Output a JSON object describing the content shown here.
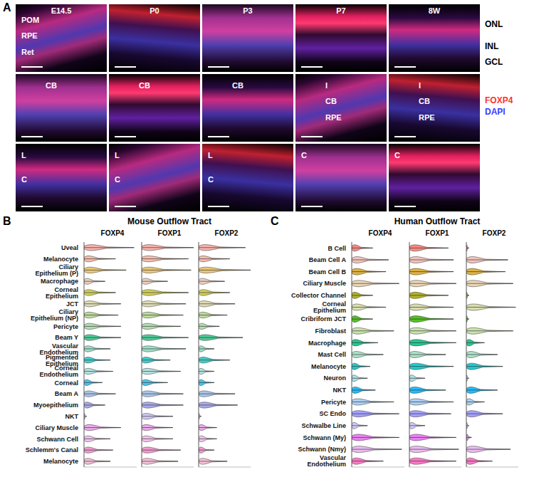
{
  "panel_labels": [
    "A",
    "B",
    "C"
  ],
  "panel_a": {
    "type": "image_grid",
    "columns": [
      "E14.5",
      "P0",
      "P3",
      "P7",
      "8W"
    ],
    "rows": [
      [
        [
          "POM",
          "RPE",
          "Ret"
        ],
        [],
        [],
        [],
        []
      ],
      [
        [
          "CB"
        ],
        [
          "CB"
        ],
        [
          "CB"
        ],
        [
          "I",
          "CB",
          "RPE"
        ],
        [
          "I",
          "CB",
          "RPE"
        ]
      ],
      [
        [
          "L",
          "C"
        ],
        [
          "L",
          "C"
        ],
        [
          "L",
          "C"
        ],
        [
          "C"
        ],
        [
          "C"
        ]
      ]
    ],
    "layer_labels": [
      "ONL",
      "INL",
      "GCL"
    ],
    "stains": [
      {
        "name": "FOXP4",
        "color": "#ff3030"
      },
      {
        "name": "DAPI",
        "color": "#3a3aff"
      }
    ]
  },
  "chart_data": [
    {
      "type": "violin",
      "title": "Mouse Outflow Tract",
      "orientation": "horizontal",
      "tick_labels": "y",
      "xlim": [
        0,
        1
      ],
      "categories": [
        "Uveal",
        "Melanocyte",
        "Ciliary Epithelium (P)",
        "Macrophage",
        "Corneal Epithelium",
        "JCT",
        "Ciliary Epithelium (NP)",
        "Pericyte",
        "Beam Y",
        "Vascular Endothelium",
        "Pigmented Epithelium",
        "Corneal Endothelium",
        "Corneal",
        "Beam A",
        "Myoepithelium",
        "NKT",
        "Ciliary Muscle",
        "Schwann Cell",
        "Schlemm's Canal",
        "Melanocyte"
      ],
      "colors": [
        "#f8a59e",
        "#f6b1a0",
        "#e8bd60",
        "#e9c9b5",
        "#c8c83c",
        "#d9d6a8",
        "#b4d68c",
        "#a8d6a4",
        "#2fc285",
        "#8fd8c0",
        "#22c5c0",
        "#a8dedc",
        "#2eb8e8",
        "#9bbde8",
        "#9b9ce8",
        "#c8c0f0",
        "#e99be8",
        "#f0b8ec",
        "#f08ac8",
        "#f5b7d0"
      ],
      "series": [
        {
          "name": "FOXP4",
          "values": [
            0.95,
            0.6,
            0.8,
            0.4,
            0.6,
            0.7,
            0.65,
            0.7,
            0.7,
            0.5,
            0.5,
            0.55,
            0.35,
            0.6,
            0.4,
            0.05,
            0.7,
            0.5,
            0.55,
            0.5
          ]
        },
        {
          "name": "FOXP1",
          "values": [
            1.0,
            0.9,
            0.95,
            0.5,
            0.9,
            0.85,
            0.8,
            0.75,
            0.9,
            0.85,
            0.55,
            0.75,
            0.5,
            0.8,
            0.8,
            0.6,
            0.6,
            0.6,
            0.75,
            0.7
          ]
        },
        {
          "name": "FOXP2",
          "values": [
            0.9,
            0.6,
            1.0,
            0.5,
            0.6,
            0.7,
            0.55,
            0.4,
            0.85,
            0.3,
            0.6,
            0.3,
            0.3,
            0.7,
            0.75,
            0.05,
            0.35,
            0.35,
            0.3,
            0.55
          ]
        }
      ]
    },
    {
      "type": "violin",
      "title": "Human Outflow Tract",
      "orientation": "horizontal",
      "tick_labels": "y",
      "xlim": [
        0,
        1
      ],
      "categories": [
        "B Cell",
        "Beam Cell A",
        "Beam Cell B",
        "Ciliary Muscle",
        "Collector Channel",
        "Corneal Epithelium",
        "Cribriform JCT",
        "Fibroblast",
        "Macrophage",
        "Mast Cell",
        "Melanocyte",
        "Neuron",
        "NKT",
        "Pericyte",
        "SC Endo",
        "Schwalbe Line",
        "Schwann (My)",
        "Schwann (Nmy)",
        "Vascular Endothelium"
      ],
      "colors": [
        "#f8766d",
        "#f0b8b0",
        "#d8a520",
        "#e8cfa8",
        "#a3a500",
        "#d4d8a0",
        "#39b600",
        "#c0dca0",
        "#00bf7d",
        "#a0dcc0",
        "#00bfc4",
        "#a0dce0",
        "#00b0f6",
        "#a0c8f0",
        "#9590ff",
        "#c8c0f8",
        "#e76bf3",
        "#e8b0f0",
        "#ff62bc"
      ],
      "series": [
        {
          "name": "FOXP4",
          "values": [
            0.4,
            0.7,
            0.65,
            0.9,
            0.4,
            0.65,
            0.4,
            0.8,
            0.5,
            0.6,
            0.35,
            0.3,
            0.45,
            0.8,
            0.9,
            0.3,
            0.9,
            0.95,
            0.6
          ]
        },
        {
          "name": "FOXP1",
          "values": [
            0.75,
            0.85,
            0.85,
            0.9,
            0.75,
            0.85,
            0.85,
            0.9,
            0.9,
            0.7,
            0.85,
            0.3,
            0.7,
            0.85,
            0.8,
            0.3,
            0.9,
            0.95,
            0.9
          ]
        },
        {
          "name": "FOXP2",
          "values": [
            0.05,
            0.8,
            0.75,
            0.9,
            0.05,
            0.95,
            0.05,
            0.9,
            0.35,
            0.6,
            0.7,
            0.05,
            0.6,
            0.35,
            0.7,
            0.05,
            0.1,
            0.85,
            0.5
          ]
        }
      ]
    }
  ]
}
